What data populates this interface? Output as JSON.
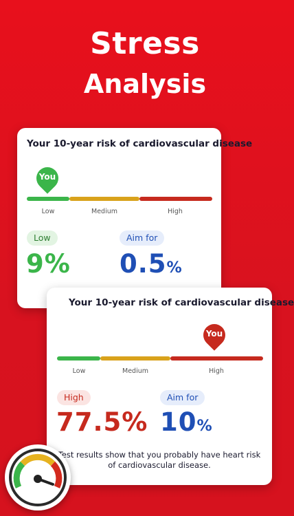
{
  "header": {
    "line1": "Stress",
    "line2": "Analysis"
  },
  "card1": {
    "title": "Your 10-year risk of cardiovascular disease",
    "marker": "You",
    "scale": {
      "low": "Low",
      "medium": "Medium",
      "high": "High"
    },
    "risk_label": "Low",
    "risk_value": "9%",
    "aim_label": "Aim for",
    "aim_value": "0.5",
    "aim_unit": "%"
  },
  "card2": {
    "title": "Your 10-year risk of cardiovascular disease",
    "marker": "You",
    "scale": {
      "low": "Low",
      "medium": "Medium",
      "high": "High"
    },
    "risk_label": "High",
    "risk_value": "77.5%",
    "aim_label": "Aim for",
    "aim_value": "10",
    "aim_unit": "%",
    "note_line1": "Test results show that you probably have heart risk",
    "note_line2": "of cardiovascular disease."
  },
  "colors": {
    "background": "#e0101c",
    "low": "#3bb54a",
    "medium": "#d9a21b",
    "high": "#c62a1e",
    "aim": "#1f4fb5"
  },
  "icons": {
    "gauge": "speedometer-gauge-icon"
  }
}
